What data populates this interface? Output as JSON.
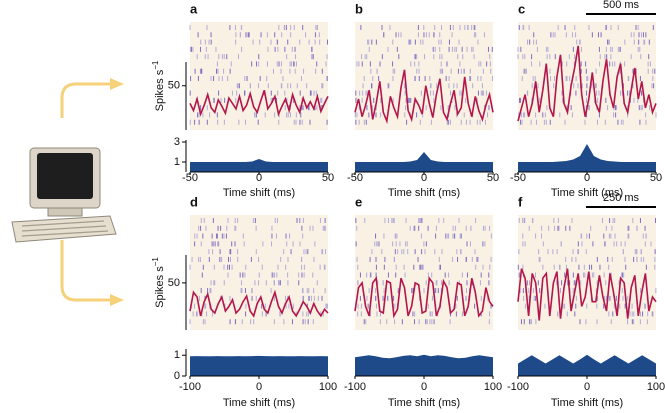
{
  "chart_data": [
    {
      "label": "a",
      "rate": {
        "type": "line",
        "color": "#b3164a",
        "ylim": [
          0,
          122
        ],
        "yticks": [
          50
        ],
        "ylabel": "Spikes s",
        "ylabel_sup": "−1",
        "values": [
          30,
          22,
          35,
          18,
          28,
          40,
          25,
          20,
          34,
          27,
          19,
          36,
          30,
          24,
          38,
          22,
          28,
          41,
          26,
          20,
          33,
          45,
          24,
          30,
          38,
          18,
          27,
          35,
          22,
          40,
          28,
          20,
          36,
          25,
          32,
          24,
          38,
          21,
          30,
          38
        ]
      },
      "correlogram": {
        "type": "area",
        "color": "#1f4a8a",
        "xlabel": "Time shift (ms)",
        "xlim": [
          -50,
          50
        ],
        "xticks": [
          -50,
          0,
          50
        ],
        "ylim": [
          0,
          3.2
        ],
        "yticks": [
          1,
          3
        ],
        "x": [
          -50,
          -45,
          -40,
          -35,
          -30,
          -25,
          -20,
          -15,
          -10,
          -5,
          0,
          5,
          10,
          15,
          20,
          25,
          30,
          35,
          40,
          45,
          50
        ],
        "values": [
          1,
          1,
          1,
          1,
          1,
          1,
          1,
          1,
          1,
          1.05,
          1.3,
          1.05,
          1,
          1,
          1,
          1,
          1,
          1,
          1,
          1,
          1
        ]
      }
    },
    {
      "label": "b",
      "rate": {
        "type": "line",
        "color": "#b3164a",
        "ylim": [
          0,
          122
        ],
        "values": [
          20,
          35,
          15,
          28,
          45,
          12,
          30,
          55,
          20,
          10,
          38,
          25,
          15,
          48,
          68,
          22,
          12,
          35,
          28,
          18,
          50,
          30,
          14,
          40,
          58,
          20,
          12,
          30,
          45,
          18,
          25,
          60,
          30,
          15,
          38,
          22,
          12,
          28,
          40,
          20
        ]
      },
      "correlogram": {
        "type": "area",
        "color": "#1f4a8a",
        "xlabel": "Time shift (ms)",
        "xlim": [
          -50,
          50
        ],
        "xticks": [
          -50,
          0,
          50
        ],
        "ylim": [
          0,
          3.2
        ],
        "x": [
          -50,
          -45,
          -40,
          -35,
          -30,
          -25,
          -20,
          -15,
          -10,
          -5,
          0,
          5,
          10,
          15,
          20,
          25,
          30,
          35,
          40,
          45,
          50
        ],
        "values": [
          1,
          1,
          1,
          1,
          1,
          1,
          1,
          1,
          1.05,
          1.2,
          2,
          1.2,
          1.05,
          1,
          1,
          1,
          1,
          1,
          1,
          1,
          1
        ]
      }
    },
    {
      "label": "c",
      "scalebar": "500 ms",
      "rate": {
        "type": "line",
        "color": "#b3164a",
        "ylim": [
          0,
          122
        ],
        "values": [
          10,
          25,
          40,
          15,
          30,
          55,
          20,
          45,
          75,
          25,
          15,
          60,
          85,
          30,
          20,
          50,
          70,
          95,
          40,
          15,
          35,
          65,
          30,
          20,
          55,
          80,
          40,
          25,
          60,
          75,
          30,
          20,
          45,
          70,
          35,
          55,
          25,
          40,
          20,
          30
        ]
      },
      "correlogram": {
        "type": "area",
        "color": "#1f4a8a",
        "xlabel": "Time shift (ms)",
        "xlim": [
          -50,
          50
        ],
        "xticks": [
          -50,
          0,
          50
        ],
        "ylim": [
          0,
          3.2
        ],
        "x": [
          -50,
          -45,
          -40,
          -35,
          -30,
          -25,
          -20,
          -15,
          -10,
          -5,
          0,
          5,
          10,
          15,
          20,
          25,
          30,
          35,
          40,
          45,
          50
        ],
        "values": [
          1,
          1,
          1,
          1,
          1,
          1,
          1.05,
          1.1,
          1.25,
          1.6,
          2.8,
          1.6,
          1.25,
          1.1,
          1.05,
          1,
          1,
          1,
          1,
          1,
          1
        ]
      }
    },
    {
      "label": "d",
      "rate": {
        "type": "line",
        "color": "#b3164a",
        "ylim": [
          0,
          122
        ],
        "yticks": [
          50
        ],
        "ylabel": "Spikes s",
        "ylabel_sup": "−1",
        "values": [
          20,
          40,
          35,
          15,
          30,
          38,
          22,
          18,
          28,
          35,
          20,
          25,
          32,
          18,
          22,
          30,
          36,
          20,
          15,
          28,
          35,
          22,
          18,
          30,
          40,
          25,
          18,
          28,
          35,
          20,
          15,
          22,
          30,
          25,
          18,
          28,
          20,
          15,
          22,
          18
        ]
      },
      "correlogram": {
        "type": "area",
        "color": "#1f4a8a",
        "xlabel": "Time shift (ms)",
        "xlim": [
          -100,
          100
        ],
        "xticks": [
          -100,
          0,
          100
        ],
        "ylim": [
          0,
          1.3
        ],
        "yticks": [
          0,
          1
        ],
        "x": [
          -100,
          -90,
          -80,
          -70,
          -60,
          -50,
          -40,
          -30,
          -20,
          -10,
          0,
          10,
          20,
          30,
          40,
          50,
          60,
          70,
          80,
          90,
          100
        ],
        "values": [
          0.95,
          0.96,
          0.95,
          0.95,
          0.96,
          0.95,
          0.95,
          0.96,
          0.95,
          0.96,
          0.97,
          0.96,
          0.95,
          0.96,
          0.95,
          0.95,
          0.96,
          0.95,
          0.95,
          0.96,
          0.95
        ]
      }
    },
    {
      "label": "e",
      "rate": {
        "type": "line",
        "color": "#b3164a",
        "ylim": [
          0,
          122
        ],
        "values": [
          20,
          45,
          50,
          25,
          15,
          50,
          55,
          20,
          18,
          52,
          50,
          15,
          22,
          55,
          45,
          15,
          25,
          50,
          48,
          18,
          20,
          55,
          50,
          15,
          25,
          52,
          45,
          18,
          22,
          50,
          48,
          15,
          25,
          55,
          40,
          15,
          20,
          45,
          30,
          25
        ]
      },
      "correlogram": {
        "type": "area",
        "color": "#1f4a8a",
        "xlabel": "Time shift (ms)",
        "xlim": [
          -100,
          100
        ],
        "xticks": [
          -100,
          0,
          100
        ],
        "ylim": [
          0,
          1.3
        ],
        "x": [
          -100,
          -90,
          -80,
          -70,
          -60,
          -50,
          -40,
          -30,
          -20,
          -10,
          0,
          10,
          20,
          30,
          40,
          50,
          60,
          70,
          80,
          90,
          100
        ],
        "values": [
          0.9,
          0.95,
          1,
          0.95,
          0.88,
          0.85,
          0.9,
          0.97,
          1,
          0.95,
          1.02,
          0.95,
          1,
          0.97,
          0.9,
          0.85,
          0.88,
          0.95,
          1,
          0.95,
          0.9
        ]
      }
    },
    {
      "label": "f",
      "scalebar": "250 ms",
      "rate": {
        "type": "line",
        "color": "#b3164a",
        "ylim": [
          0,
          122
        ],
        "values": [
          30,
          65,
          55,
          15,
          60,
          50,
          10,
          55,
          60,
          15,
          50,
          62,
          12,
          45,
          65,
          20,
          40,
          60,
          25,
          35,
          62,
          30,
          30,
          58,
          35,
          20,
          60,
          40,
          15,
          55,
          50,
          12,
          45,
          58,
          15,
          40,
          60,
          20,
          35,
          30
        ]
      },
      "correlogram": {
        "type": "area",
        "color": "#1f4a8a",
        "xlabel": "Time shift (ms)",
        "xlim": [
          -100,
          100
        ],
        "xticks": [
          -100,
          0,
          100
        ],
        "ylim": [
          0,
          1.3
        ],
        "x": [
          -100,
          -90,
          -80,
          -70,
          -60,
          -50,
          -40,
          -30,
          -20,
          -10,
          0,
          10,
          20,
          30,
          40,
          50,
          60,
          70,
          80,
          90,
          100
        ],
        "values": [
          0.6,
          0.8,
          1,
          0.8,
          0.6,
          0.8,
          1,
          0.8,
          0.6,
          0.8,
          1.02,
          0.8,
          0.6,
          0.8,
          1,
          0.8,
          0.6,
          0.8,
          1,
          0.8,
          0.6
        ]
      }
    }
  ]
}
